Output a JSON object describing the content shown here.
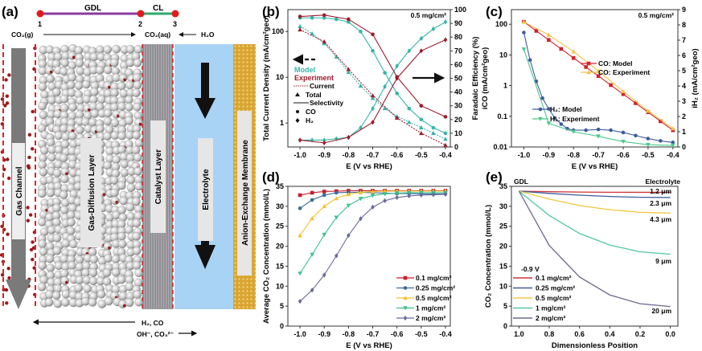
{
  "panels": {
    "a": "(a)",
    "b": "(b)",
    "c": "(c)",
    "d": "(d)",
    "e": "(e)"
  },
  "diagram": {
    "segment_gdl": "GDL",
    "segment_cl": "CL",
    "point_1": "1",
    "point_2": "2",
    "point_3": "3",
    "co2_gas": "CO₂(g)",
    "co2_aq": "CO₂(aq)",
    "water": "H₂O",
    "gas_channel": "Gas Channel",
    "gdl_layer": "Gas-Diffusion Layer",
    "catalyst_layer": "Catalyst Layer",
    "electrolyte": "Electrolyte",
    "membrane": "Anion-Exchange Membrane",
    "products": "H₂, CO",
    "ions": "OH⁻, CO₃²⁻",
    "colors": {
      "gdl_line": "#8b3a9e",
      "cl_line": "#2eaa6e",
      "node": "#e01b1b",
      "electrolyte": "#a8d3f5",
      "membrane": "#d9a532",
      "particle": "#9a1a1a"
    }
  },
  "legend_b": {
    "model": "Model",
    "experiment": "Experiment",
    "current": "Current",
    "total": "Total",
    "selectivity": "Selectivity",
    "co": "CO",
    "h2": "H₂"
  },
  "chart_data": [
    {
      "id": "b",
      "type": "line",
      "xlabel": "E (V vs RHE)",
      "ylabel": "Total Current Density (mA/cm²geo)",
      "y2label": "Faradaic Efficiency (%)",
      "annotation": "0.5 mg/cm²",
      "xlim": [
        -1.05,
        -0.38
      ],
      "ylim": [
        0.3,
        300
      ],
      "yscale": "log",
      "y2lim": [
        0,
        100
      ],
      "xticks": [
        -1.0,
        -0.9,
        -0.8,
        -0.7,
        -0.6,
        -0.5,
        -0.4
      ],
      "xtick_labels": [
        "-1.0",
        "-0.9",
        "-0.8",
        "-0.7",
        "-0.6",
        "-0.5",
        "-0.4"
      ],
      "yticks": [
        1,
        10,
        100
      ],
      "ytick_labels": [
        "1",
        "10",
        "100"
      ],
      "y2ticks": [
        0,
        10,
        20,
        30,
        40,
        50,
        60,
        70,
        80,
        90,
        100
      ],
      "y2tick_labels": [
        "0",
        "10",
        "20",
        "30",
        "40",
        "50",
        "60",
        "70",
        "80",
        "90",
        "100"
      ],
      "colors": {
        "model": "#35b5a8",
        "experiment": "#9b1c2c"
      },
      "series": [
        {
          "source": "Model",
          "quantity": "Total current",
          "axis": "left",
          "marker": "tri",
          "dash": "2,1.5",
          "color": "#35b5a8",
          "x": [
            -1.0,
            -0.95,
            -0.9,
            -0.85,
            -0.8,
            -0.75,
            -0.7,
            -0.65,
            -0.6,
            -0.55,
            -0.5,
            -0.45,
            -0.4
          ],
          "y": [
            130,
            90,
            55,
            28,
            13,
            6.5,
            3.5,
            2.1,
            1.4,
            1.05,
            0.8,
            0.6,
            0.45
          ]
        },
        {
          "source": "Experiment",
          "quantity": "Total current",
          "axis": "left",
          "marker": "tri",
          "dash": "2,1.5",
          "color": "#9b1c2c",
          "x": [
            -1.0,
            -0.9,
            -0.8,
            -0.7,
            -0.6,
            -0.5,
            -0.4
          ],
          "y": [
            110,
            60,
            15,
            4,
            1.3,
            0.6,
            0.33
          ]
        },
        {
          "source": "Model",
          "quantity": "CO selectivity",
          "axis": "right",
          "marker": "circle",
          "dash": "",
          "color": "#35b5a8",
          "x": [
            -1.0,
            -0.95,
            -0.9,
            -0.85,
            -0.8,
            -0.75,
            -0.7,
            -0.65,
            -0.6,
            -0.55,
            -0.5,
            -0.45,
            -0.4
          ],
          "y": [
            94,
            94,
            94,
            93,
            91,
            84,
            70,
            54,
            39,
            28,
            20,
            14,
            10
          ]
        },
        {
          "source": "Model",
          "quantity": "H₂ selectivity",
          "axis": "right",
          "marker": "diamond",
          "dash": "",
          "color": "#35b5a8",
          "x": [
            -1.0,
            -0.95,
            -0.9,
            -0.85,
            -0.8,
            -0.75,
            -0.7,
            -0.65,
            -0.6,
            -0.55,
            -0.5,
            -0.45,
            -0.4
          ],
          "y": [
            5,
            5,
            5,
            6,
            7,
            14,
            28,
            44,
            59,
            70,
            79,
            86,
            91
          ]
        },
        {
          "source": "Experiment",
          "quantity": "CO selectivity",
          "axis": "right",
          "marker": "circle",
          "dash": "",
          "color": "#9b1c2c",
          "x": [
            -1.0,
            -0.9,
            -0.8,
            -0.7,
            -0.6,
            -0.5,
            -0.4
          ],
          "y": [
            95,
            96,
            93,
            82,
            51,
            30,
            22
          ]
        },
        {
          "source": "Experiment",
          "quantity": "H₂ selectivity",
          "axis": "right",
          "marker": "diamond",
          "dash": "",
          "color": "#9b1c2c",
          "x": [
            -1.0,
            -0.9,
            -0.8,
            -0.7,
            -0.6,
            -0.5,
            -0.4
          ],
          "y": [
            5,
            3,
            7,
            18,
            50,
            70,
            78
          ]
        }
      ]
    },
    {
      "id": "c",
      "type": "line",
      "xlabel": "E (V vs RHE)",
      "ylabel": "iCO (mA/cm²geo)",
      "y2label": "iH₂ (mA/cm²geo)",
      "annotation": "0.5 mg/cm²",
      "xlim": [
        -1.05,
        -0.38
      ],
      "ylim": [
        0.01,
        300
      ],
      "yscale": "log",
      "y2lim": [
        0,
        9
      ],
      "xticks": [
        -1.0,
        -0.9,
        -0.8,
        -0.7,
        -0.6,
        -0.5,
        -0.4
      ],
      "xtick_labels": [
        "-1.0",
        "-0.9",
        "-0.8",
        "-0.7",
        "-0.6",
        "-0.5",
        "-0.4"
      ],
      "yticks": [
        0.01,
        0.1,
        1,
        10,
        100
      ],
      "ytick_labels": [
        "0.01",
        "0.1",
        "1",
        "10",
        "100"
      ],
      "y2ticks": [
        0,
        1,
        2,
        3,
        4,
        5,
        6,
        7,
        8,
        9
      ],
      "y2tick_labels": [
        "0",
        "1",
        "2",
        "3",
        "4",
        "5",
        "6",
        "7",
        "8",
        "9"
      ],
      "series": [
        {
          "name": "CO: Model",
          "axis": "left",
          "marker": "square",
          "color": "#d4212b",
          "x": [
            -1.0,
            -0.95,
            -0.9,
            -0.85,
            -0.8,
            -0.75,
            -0.7,
            -0.65,
            -0.6,
            -0.55,
            -0.5,
            -0.45,
            -0.4
          ],
          "y": [
            120,
            61,
            30.9,
            15.7,
            7.96,
            4.04,
            2.05,
            1.04,
            0.527,
            0.267,
            0.136,
            0.069,
            0.035
          ]
        },
        {
          "name": "CO: Experiment",
          "axis": "left",
          "marker": "tri",
          "color": "#f5c343",
          "x": [
            -1.0,
            -0.9,
            -0.8,
            -0.7,
            -0.6,
            -0.5,
            -0.4
          ],
          "y": [
            120,
            45,
            13,
            3,
            0.65,
            0.15,
            0.04
          ]
        },
        {
          "name": "H₂: Model",
          "axis": "right",
          "marker": "circle",
          "color": "#3d5d9c",
          "x": [
            -1.0,
            -0.975,
            -0.95,
            -0.925,
            -0.9,
            -0.875,
            -0.85,
            -0.825,
            -0.8,
            -0.75,
            -0.7,
            -0.65,
            -0.6,
            -0.55,
            -0.5,
            -0.45,
            -0.4
          ],
          "y": [
            7.5,
            5.7,
            4.3,
            3.2,
            2.5,
            1.9,
            1.5,
            1.2,
            1.1,
            1.1,
            1.15,
            1.1,
            0.95,
            0.75,
            0.55,
            0.4,
            0.3
          ]
        },
        {
          "name": "H₂: Experiment",
          "axis": "right",
          "marker": "tridown",
          "color": "#4cc98c",
          "x": [
            -1.0,
            -0.9,
            -0.8,
            -0.7,
            -0.6,
            -0.5,
            -0.4
          ],
          "y": [
            6.4,
            1.55,
            1.0,
            0.7,
            0.35,
            0.15,
            0.1
          ]
        }
      ]
    },
    {
      "id": "d",
      "type": "line",
      "xlabel": "E (V vs RHE)",
      "ylabel": "Average CO₂ Concentration (mmol/L)",
      "xlim": [
        -1.05,
        -0.38
      ],
      "ylim": [
        0,
        35
      ],
      "xticks": [
        -1.0,
        -0.9,
        -0.8,
        -0.7,
        -0.6,
        -0.5,
        -0.4
      ],
      "xtick_labels": [
        "-1.0",
        "-0.9",
        "-0.8",
        "-0.7",
        "-0.6",
        "-0.5",
        "-0.4"
      ],
      "yticks": [
        0,
        5,
        10,
        15,
        20,
        25,
        30,
        35
      ],
      "ytick_labels": [
        "0",
        "5",
        "10",
        "15",
        "20",
        "25",
        "30",
        "35"
      ],
      "legend": "bottom-right",
      "series": [
        {
          "name": "0.1 mg/cm²",
          "marker": "square",
          "color": "#c81f2b",
          "x": [
            -1.0,
            -0.95,
            -0.9,
            -0.85,
            -0.8,
            -0.75,
            -0.7,
            -0.65,
            -0.6,
            -0.55,
            -0.5,
            -0.45,
            -0.4
          ],
          "y": [
            32.8,
            33.4,
            33.7,
            33.8,
            33.9,
            33.9,
            33.9,
            33.9,
            33.9,
            33.9,
            33.9,
            33.9,
            33.9
          ]
        },
        {
          "name": "0.25 mg/cm²",
          "marker": "circle",
          "color": "#3e6b9c",
          "x": [
            -1.0,
            -0.95,
            -0.9,
            -0.85,
            -0.8,
            -0.75,
            -0.7,
            -0.65,
            -0.6,
            -0.55,
            -0.5,
            -0.45,
            -0.4
          ],
          "y": [
            29.5,
            31.6,
            32.8,
            33.4,
            33.5,
            33.5,
            33.4,
            33.3,
            33.2,
            33.2,
            33.1,
            33.1,
            33.1
          ]
        },
        {
          "name": "0.5 mg/cm²",
          "marker": "tri",
          "color": "#f2c232",
          "x": [
            -1.0,
            -0.95,
            -0.9,
            -0.85,
            -0.8,
            -0.75,
            -0.7,
            -0.65,
            -0.6,
            -0.55,
            -0.5,
            -0.45,
            -0.4
          ],
          "y": [
            22.7,
            27,
            30,
            32,
            33,
            33.5,
            33.7,
            33.8,
            33.8,
            33.8,
            33.8,
            33.8,
            33.8
          ]
        },
        {
          "name": "1 mg/cm²",
          "marker": "tridown",
          "color": "#3dc08c",
          "x": [
            -1.0,
            -0.95,
            -0.9,
            -0.85,
            -0.8,
            -0.75,
            -0.7,
            -0.65,
            -0.6,
            -0.55,
            -0.5,
            -0.45,
            -0.4
          ],
          "y": [
            13.2,
            17.9,
            22.9,
            27.2,
            30.2,
            31.9,
            32.7,
            33.1,
            33.3,
            33.4,
            33.4,
            33.4,
            33.4
          ]
        },
        {
          "name": "2 mg/cm²",
          "marker": "diamond",
          "color": "#6a6a9c",
          "x": [
            -1.0,
            -0.95,
            -0.9,
            -0.85,
            -0.8,
            -0.75,
            -0.7,
            -0.65,
            -0.6,
            -0.55,
            -0.5,
            -0.45,
            -0.4
          ],
          "y": [
            6.2,
            9,
            12.8,
            17.6,
            22.7,
            26.9,
            29.8,
            31.4,
            32.2,
            32.6,
            32.8,
            32.9,
            33.0
          ]
        }
      ]
    },
    {
      "id": "e",
      "type": "line",
      "xlabel": "Dimensionless Position",
      "ylabel": "CO₂ Concentration (mmol/L)",
      "xlim": [
        1.05,
        -0.05
      ],
      "ylim": [
        0,
        35
      ],
      "xticks": [
        1.0,
        0.8,
        0.6,
        0.4,
        0.2,
        0.0
      ],
      "xtick_labels": [
        "1.0",
        "0.8",
        "0.6",
        "0.4",
        "0.2",
        "0.0"
      ],
      "yticks": [
        0,
        5,
        10,
        15,
        20,
        25,
        30,
        35
      ],
      "ytick_labels": [
        "0",
        "5",
        "10",
        "15",
        "20",
        "25",
        "30",
        "35"
      ],
      "left_label": "GDL",
      "right_label": "Electrolyte",
      "annotation": "-0.9 V",
      "legend": "bottom-left",
      "series": [
        {
          "name": "0.1 mg/cm²",
          "thickness": "1.2 μm",
          "color": "#d0333a",
          "x": [
            1.0,
            0.8,
            0.6,
            0.4,
            0.2,
            0.0
          ],
          "y": [
            33.8,
            33.65,
            33.57,
            33.52,
            33.5,
            33.5
          ]
        },
        {
          "name": "0.25 mg/cm²",
          "thickness": "2.3 μm",
          "color": "#3d5d9c",
          "x": [
            1.0,
            0.8,
            0.6,
            0.4,
            0.2,
            0.0
          ],
          "y": [
            33.8,
            33.23,
            32.78,
            32.46,
            32.26,
            32.2
          ]
        },
        {
          "name": "0.5 mg/cm²",
          "thickness": "4.3 μm",
          "color": "#efca3e",
          "x": [
            1.0,
            0.8,
            0.6,
            0.4,
            0.2,
            0.0
          ],
          "y": [
            33.8,
            31.8,
            30.2,
            29.15,
            28.5,
            28.3
          ]
        },
        {
          "name": "1 mg/cm²",
          "thickness": "9 μm",
          "color": "#52c9a0",
          "x": [
            1.0,
            0.8,
            0.6,
            0.4,
            0.2,
            0.0
          ],
          "y": [
            33.8,
            27.7,
            23.2,
            20.3,
            18.6,
            18.0
          ]
        },
        {
          "name": "2 mg/cm²",
          "thickness": "20 μm",
          "color": "#6a6a8e",
          "x": [
            1.0,
            0.8,
            0.6,
            0.4,
            0.2,
            0.0
          ],
          "y": [
            33.8,
            20.2,
            12.3,
            7.8,
            5.6,
            4.9
          ]
        }
      ]
    }
  ]
}
